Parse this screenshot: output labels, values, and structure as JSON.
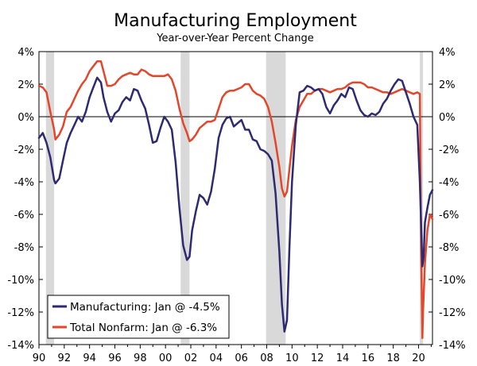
{
  "chart_data": {
    "type": "line",
    "title": "Manufacturing Employment",
    "subtitle": "Year-over-Year Percent Change",
    "xlabel": "",
    "ylabel": "",
    "xlim": [
      1990,
      2021.1
    ],
    "ylim": [
      -14,
      4
    ],
    "y_ticks": [
      4,
      2,
      0,
      -2,
      -4,
      -6,
      -8,
      -10,
      -12,
      -14
    ],
    "y_tick_suffix": "%",
    "x_ticks": [
      {
        "value": 1990,
        "label": "90"
      },
      {
        "value": 1992,
        "label": "92"
      },
      {
        "value": 1994,
        "label": "94"
      },
      {
        "value": 1996,
        "label": "96"
      },
      {
        "value": 1998,
        "label": "98"
      },
      {
        "value": 2000,
        "label": "00"
      },
      {
        "value": 2002,
        "label": "02"
      },
      {
        "value": 2004,
        "label": "04"
      },
      {
        "value": 2006,
        "label": "06"
      },
      {
        "value": 2008,
        "label": "08"
      },
      {
        "value": 2010,
        "label": "10"
      },
      {
        "value": 2012,
        "label": "12"
      },
      {
        "value": 2014,
        "label": "14"
      },
      {
        "value": 2016,
        "label": "16"
      },
      {
        "value": 2018,
        "label": "18"
      },
      {
        "value": 2020,
        "label": "20"
      }
    ],
    "grid": false,
    "zero_line": true,
    "legend_position": "bottom-left",
    "recessions": [
      [
        1990.55,
        1991.2
      ],
      [
        2001.2,
        2001.9
      ],
      [
        2007.95,
        2009.5
      ],
      [
        2020.1,
        2020.35
      ]
    ],
    "series": [
      {
        "name": "Manufacturing: Jan @ -4.5%",
        "color": "#2e2a72",
        "x": [
          1990,
          1990.3,
          1990.6,
          1990.9,
          1991.2,
          1991.3,
          1991.6,
          1991.9,
          1992.2,
          1992.5,
          1992.8,
          1993.1,
          1993.4,
          1993.7,
          1994,
          1994.3,
          1994.6,
          1994.9,
          1995.1,
          1995.4,
          1995.7,
          1996,
          1996.3,
          1996.6,
          1996.9,
          1997.2,
          1997.5,
          1997.8,
          1998.1,
          1998.4,
          1998.7,
          1999,
          1999.3,
          1999.6,
          1999.9,
          2000.2,
          2000.5,
          2000.8,
          2001.1,
          2001.4,
          2001.7,
          2001.9,
          2002.1,
          2002.4,
          2002.7,
          2003,
          2003.3,
          2003.6,
          2003.9,
          2004.2,
          2004.5,
          2004.8,
          2005.1,
          2005.4,
          2005.7,
          2006,
          2006.3,
          2006.6,
          2006.9,
          2007.2,
          2007.5,
          2007.8,
          2008.1,
          2008.4,
          2008.7,
          2009,
          2009.2,
          2009.4,
          2009.6,
          2009.8,
          2010,
          2010.3,
          2010.6,
          2010.9,
          2011.2,
          2011.5,
          2011.8,
          2012.1,
          2012.4,
          2012.7,
          2013,
          2013.3,
          2013.6,
          2013.9,
          2014.2,
          2014.5,
          2014.8,
          2015.1,
          2015.4,
          2015.7,
          2016,
          2016.3,
          2016.6,
          2016.9,
          2017.2,
          2017.5,
          2017.8,
          2018.1,
          2018.4,
          2018.7,
          2019,
          2019.3,
          2019.6,
          2019.9,
          2020.1,
          2020.3,
          2020.4,
          2020.5,
          2020.7,
          2020.9,
          2021.1
        ],
        "values": [
          -1.3,
          -1.0,
          -1.6,
          -2.5,
          -3.9,
          -4.1,
          -3.8,
          -2.7,
          -1.6,
          -1.0,
          -0.5,
          0.0,
          -0.3,
          0.3,
          1.2,
          1.8,
          2.4,
          2.1,
          1.2,
          0.3,
          -0.3,
          0.2,
          0.4,
          0.9,
          1.2,
          1.0,
          1.7,
          1.6,
          1.0,
          0.5,
          -0.5,
          -1.6,
          -1.5,
          -0.7,
          0.0,
          -0.3,
          -0.8,
          -2.8,
          -5.6,
          -7.9,
          -8.8,
          -8.6,
          -7.0,
          -5.8,
          -4.8,
          -5.0,
          -5.4,
          -4.6,
          -3.2,
          -1.3,
          -0.5,
          -0.1,
          0.0,
          -0.6,
          -0.4,
          -0.2,
          -0.8,
          -0.8,
          -1.4,
          -1.5,
          -2.0,
          -2.1,
          -2.3,
          -2.7,
          -4.7,
          -8.3,
          -11.5,
          -13.2,
          -12.5,
          -8.0,
          -4.0,
          -0.5,
          1.5,
          1.6,
          1.9,
          1.8,
          1.6,
          1.7,
          1.4,
          0.6,
          0.2,
          0.7,
          1.0,
          1.4,
          1.2,
          1.8,
          1.7,
          1.0,
          0.4,
          0.1,
          0.0,
          0.2,
          0.1,
          0.3,
          0.8,
          1.1,
          1.6,
          2.0,
          2.3,
          2.2,
          1.5,
          0.8,
          0.0,
          -0.5,
          -4.0,
          -9.2,
          -8.6,
          -6.5,
          -5.6,
          -4.8,
          -4.5
        ]
      },
      {
        "name": "Total Nonfarm: Jan @ -6.3%",
        "color": "#e2472b",
        "x": [
          1990,
          1990.3,
          1990.6,
          1990.9,
          1991.2,
          1991.3,
          1991.6,
          1991.9,
          1992.2,
          1992.5,
          1992.8,
          1993.1,
          1993.4,
          1993.7,
          1994,
          1994.3,
          1994.6,
          1994.9,
          1995.1,
          1995.4,
          1995.7,
          1996,
          1996.3,
          1996.6,
          1996.9,
          1997.2,
          1997.5,
          1997.8,
          1998.1,
          1998.4,
          1998.7,
          1999,
          1999.3,
          1999.6,
          1999.9,
          2000.2,
          2000.5,
          2000.8,
          2001.1,
          2001.4,
          2001.7,
          2001.9,
          2002.1,
          2002.4,
          2002.7,
          2003,
          2003.3,
          2003.6,
          2003.9,
          2004.2,
          2004.5,
          2004.8,
          2005.1,
          2005.4,
          2005.7,
          2006,
          2006.3,
          2006.6,
          2006.9,
          2007.2,
          2007.5,
          2007.8,
          2008.1,
          2008.4,
          2008.7,
          2009,
          2009.2,
          2009.4,
          2009.6,
          2009.8,
          2010,
          2010.3,
          2010.6,
          2010.9,
          2011.2,
          2011.5,
          2011.8,
          2012.1,
          2012.4,
          2012.7,
          2013,
          2013.3,
          2013.6,
          2013.9,
          2014.2,
          2014.5,
          2014.8,
          2015.1,
          2015.4,
          2015.7,
          2016,
          2016.3,
          2016.6,
          2016.9,
          2017.2,
          2017.5,
          2017.8,
          2018.1,
          2018.4,
          2018.7,
          2019,
          2019.3,
          2019.6,
          2019.9,
          2020.1,
          2020.2,
          2020.3,
          2020.35,
          2020.5,
          2020.7,
          2020.9,
          2021.1
        ],
        "values": [
          1.9,
          1.8,
          1.5,
          0.3,
          -0.8,
          -1.4,
          -1.1,
          -0.6,
          0.3,
          0.6,
          1.1,
          1.6,
          2.0,
          2.3,
          2.8,
          3.1,
          3.4,
          3.4,
          2.8,
          1.9,
          1.9,
          2.0,
          2.3,
          2.5,
          2.6,
          2.7,
          2.6,
          2.6,
          2.9,
          2.8,
          2.6,
          2.5,
          2.5,
          2.5,
          2.5,
          2.6,
          2.3,
          1.6,
          0.5,
          -0.4,
          -1.0,
          -1.5,
          -1.4,
          -1.1,
          -0.7,
          -0.5,
          -0.3,
          -0.3,
          -0.2,
          0.5,
          1.2,
          1.5,
          1.6,
          1.6,
          1.7,
          1.8,
          2.0,
          2.0,
          1.6,
          1.4,
          1.3,
          1.1,
          0.6,
          -0.3,
          -1.6,
          -3.1,
          -4.4,
          -4.9,
          -4.6,
          -3.2,
          -1.8,
          -0.2,
          0.6,
          1.0,
          1.4,
          1.4,
          1.6,
          1.7,
          1.7,
          1.6,
          1.5,
          1.6,
          1.7,
          1.7,
          1.8,
          2.0,
          2.1,
          2.1,
          2.1,
          2.0,
          1.8,
          1.8,
          1.7,
          1.6,
          1.5,
          1.5,
          1.4,
          1.5,
          1.6,
          1.7,
          1.6,
          1.5,
          1.4,
          1.5,
          1.4,
          -8.0,
          -13.6,
          -12.0,
          -9.0,
          -7.0,
          -6.0,
          -6.3
        ]
      }
    ]
  }
}
